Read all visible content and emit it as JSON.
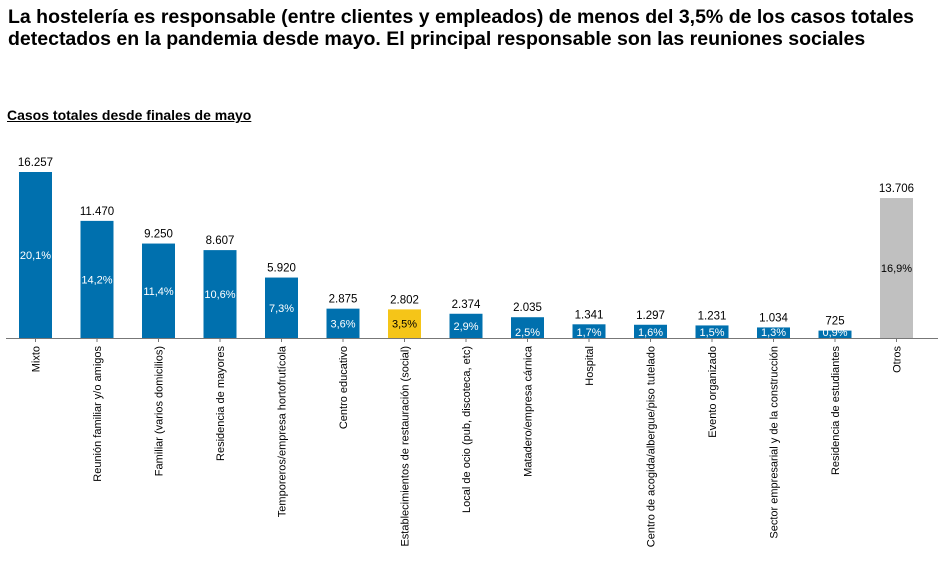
{
  "headline": "La hostelería es responsable (entre clientes y empleados) de menos del 3,5% de los casos totales detectados en la pandemia desde mayo. El principal responsable son las reuniones sociales",
  "colors": {
    "default": "#0070ae",
    "highlight": "#f5c518",
    "other": "#c0c0c0"
  },
  "chart_data": {
    "type": "bar",
    "title": "Casos totales desde finales de mayo",
    "xlabel": "",
    "ylabel": "",
    "ylim": [
      0,
      16257
    ],
    "grid": false,
    "legend": "none",
    "categories": [
      "Mixto",
      "Reunión familiar y/o amigos",
      "Familiar (varios domicilios)",
      "Residencia de mayores",
      "Temporeros/empresa hortofrutícola",
      "Centro educativo",
      "Establecimientos de restauración (social)",
      "Local de ocio (pub, discoteca, etc)",
      "Matadero/empresa cárnica",
      "Hospital",
      "Centro de acogida/albergue/piso tutelado",
      "Evento organizado",
      "Sector empresarial y de la construcción",
      "Residencia de estudiantes",
      "Otros"
    ],
    "values": [
      16257,
      11470,
      9250,
      8607,
      5920,
      2875,
      2802,
      2374,
      2035,
      1341,
      1297,
      1231,
      1034,
      725,
      13706
    ],
    "value_labels": [
      "16.257",
      "11.470",
      "9.250",
      "8.607",
      "5.920",
      "2.875",
      "2.802",
      "2.374",
      "2.035",
      "1.341",
      "1.297",
      "1.231",
      "1.034",
      "725",
      "13.706"
    ],
    "percent_labels": [
      "20,1%",
      "14,2%",
      "11,4%",
      "10,6%",
      "7,3%",
      "3,6%",
      "3,5%",
      "2,9%",
      "2,5%",
      "1,7%",
      "1,6%",
      "1,5%",
      "1,3%",
      "0,9%",
      "16,9%"
    ],
    "highlight_index": 6,
    "other_index": 14
  }
}
